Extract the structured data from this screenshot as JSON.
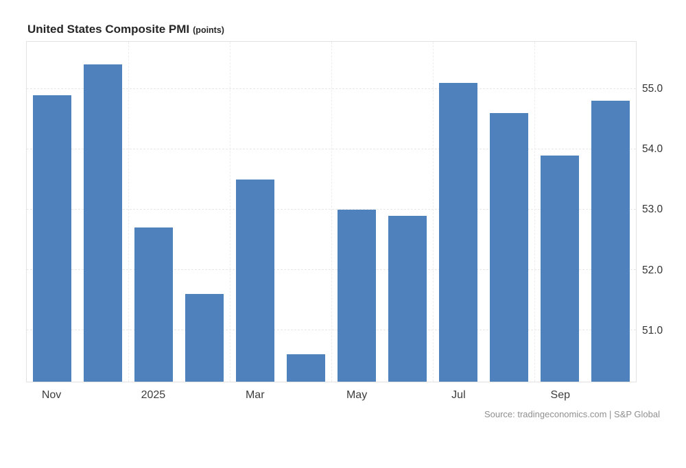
{
  "chart_data": {
    "type": "bar",
    "title": "United States Composite PMI",
    "title_suffix": "(points)",
    "source": "Source: tradingeconomics.com | S&P Global",
    "bar_color": "#4f81bd",
    "values": [
      54.9,
      55.4,
      52.7,
      51.6,
      53.5,
      50.6,
      53.0,
      52.9,
      55.1,
      54.6,
      53.9,
      54.8
    ],
    "x_tick_labels": [
      {
        "label": "Nov",
        "bar_index": 0
      },
      {
        "label": "2025",
        "bar_index": 2
      },
      {
        "label": "Mar",
        "bar_index": 4
      },
      {
        "label": "May",
        "bar_index": 6
      },
      {
        "label": "Jul",
        "bar_index": 8
      },
      {
        "label": "Sep",
        "bar_index": 10
      }
    ],
    "y_ticks": [
      51.0,
      52.0,
      53.0,
      54.0,
      55.0
    ],
    "ylim": [
      50.15,
      55.78
    ],
    "grid": true,
    "legend_position": "none"
  }
}
